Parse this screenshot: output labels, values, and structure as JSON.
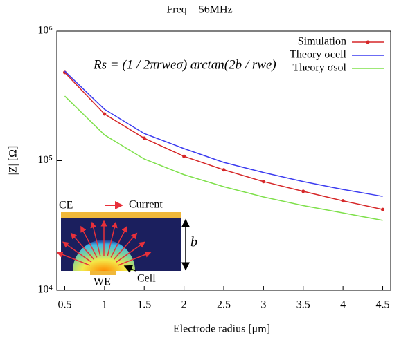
{
  "chart_data": {
    "type": "line",
    "title": "Freq = 56MHz",
    "x_label": "Electrode radius [μm]",
    "y_label": "|Z| [Ω]",
    "log_y": true,
    "x": [
      0.5,
      1.0,
      1.5,
      2.0,
      2.5,
      3.0,
      3.5,
      4.0,
      4.5
    ],
    "xlim": [
      0.4,
      4.6
    ],
    "xticks": [
      0.5,
      1,
      1.5,
      2,
      2.5,
      3,
      3.5,
      4,
      4.5
    ],
    "ylim": [
      10000,
      1000000
    ],
    "yticks": [
      {
        "value": 10000,
        "label": "10⁴"
      },
      {
        "value": 100000,
        "label": "10⁵"
      },
      {
        "value": 1000000,
        "label": "10⁶"
      }
    ],
    "legend": "upper right",
    "series": [
      {
        "name": "Simulation",
        "color": "#d62728",
        "marker": true,
        "values": [
          479000,
          229000,
          149000,
          108000,
          85000,
          69000,
          58000,
          49000,
          42000
        ]
      },
      {
        "name": "Theory σcell",
        "color": "#3b3bf0",
        "marker": false,
        "values": [
          490000,
          249000,
          162000,
          124000,
          97000,
          81000,
          69000,
          60000,
          53000
        ]
      },
      {
        "name": "Theory σsol",
        "color": "#7ee04a",
        "marker": false,
        "values": [
          315000,
          158000,
          103000,
          78000,
          63000,
          52500,
          45000,
          39500,
          34600
        ]
      }
    ],
    "annotations": {
      "formula": "Rs = (1 / 2πrweσ) arctan(2b / rwe)",
      "ce": "CE",
      "current": "Current",
      "b": "b",
      "we": "WE",
      "cell": "Cell"
    }
  }
}
